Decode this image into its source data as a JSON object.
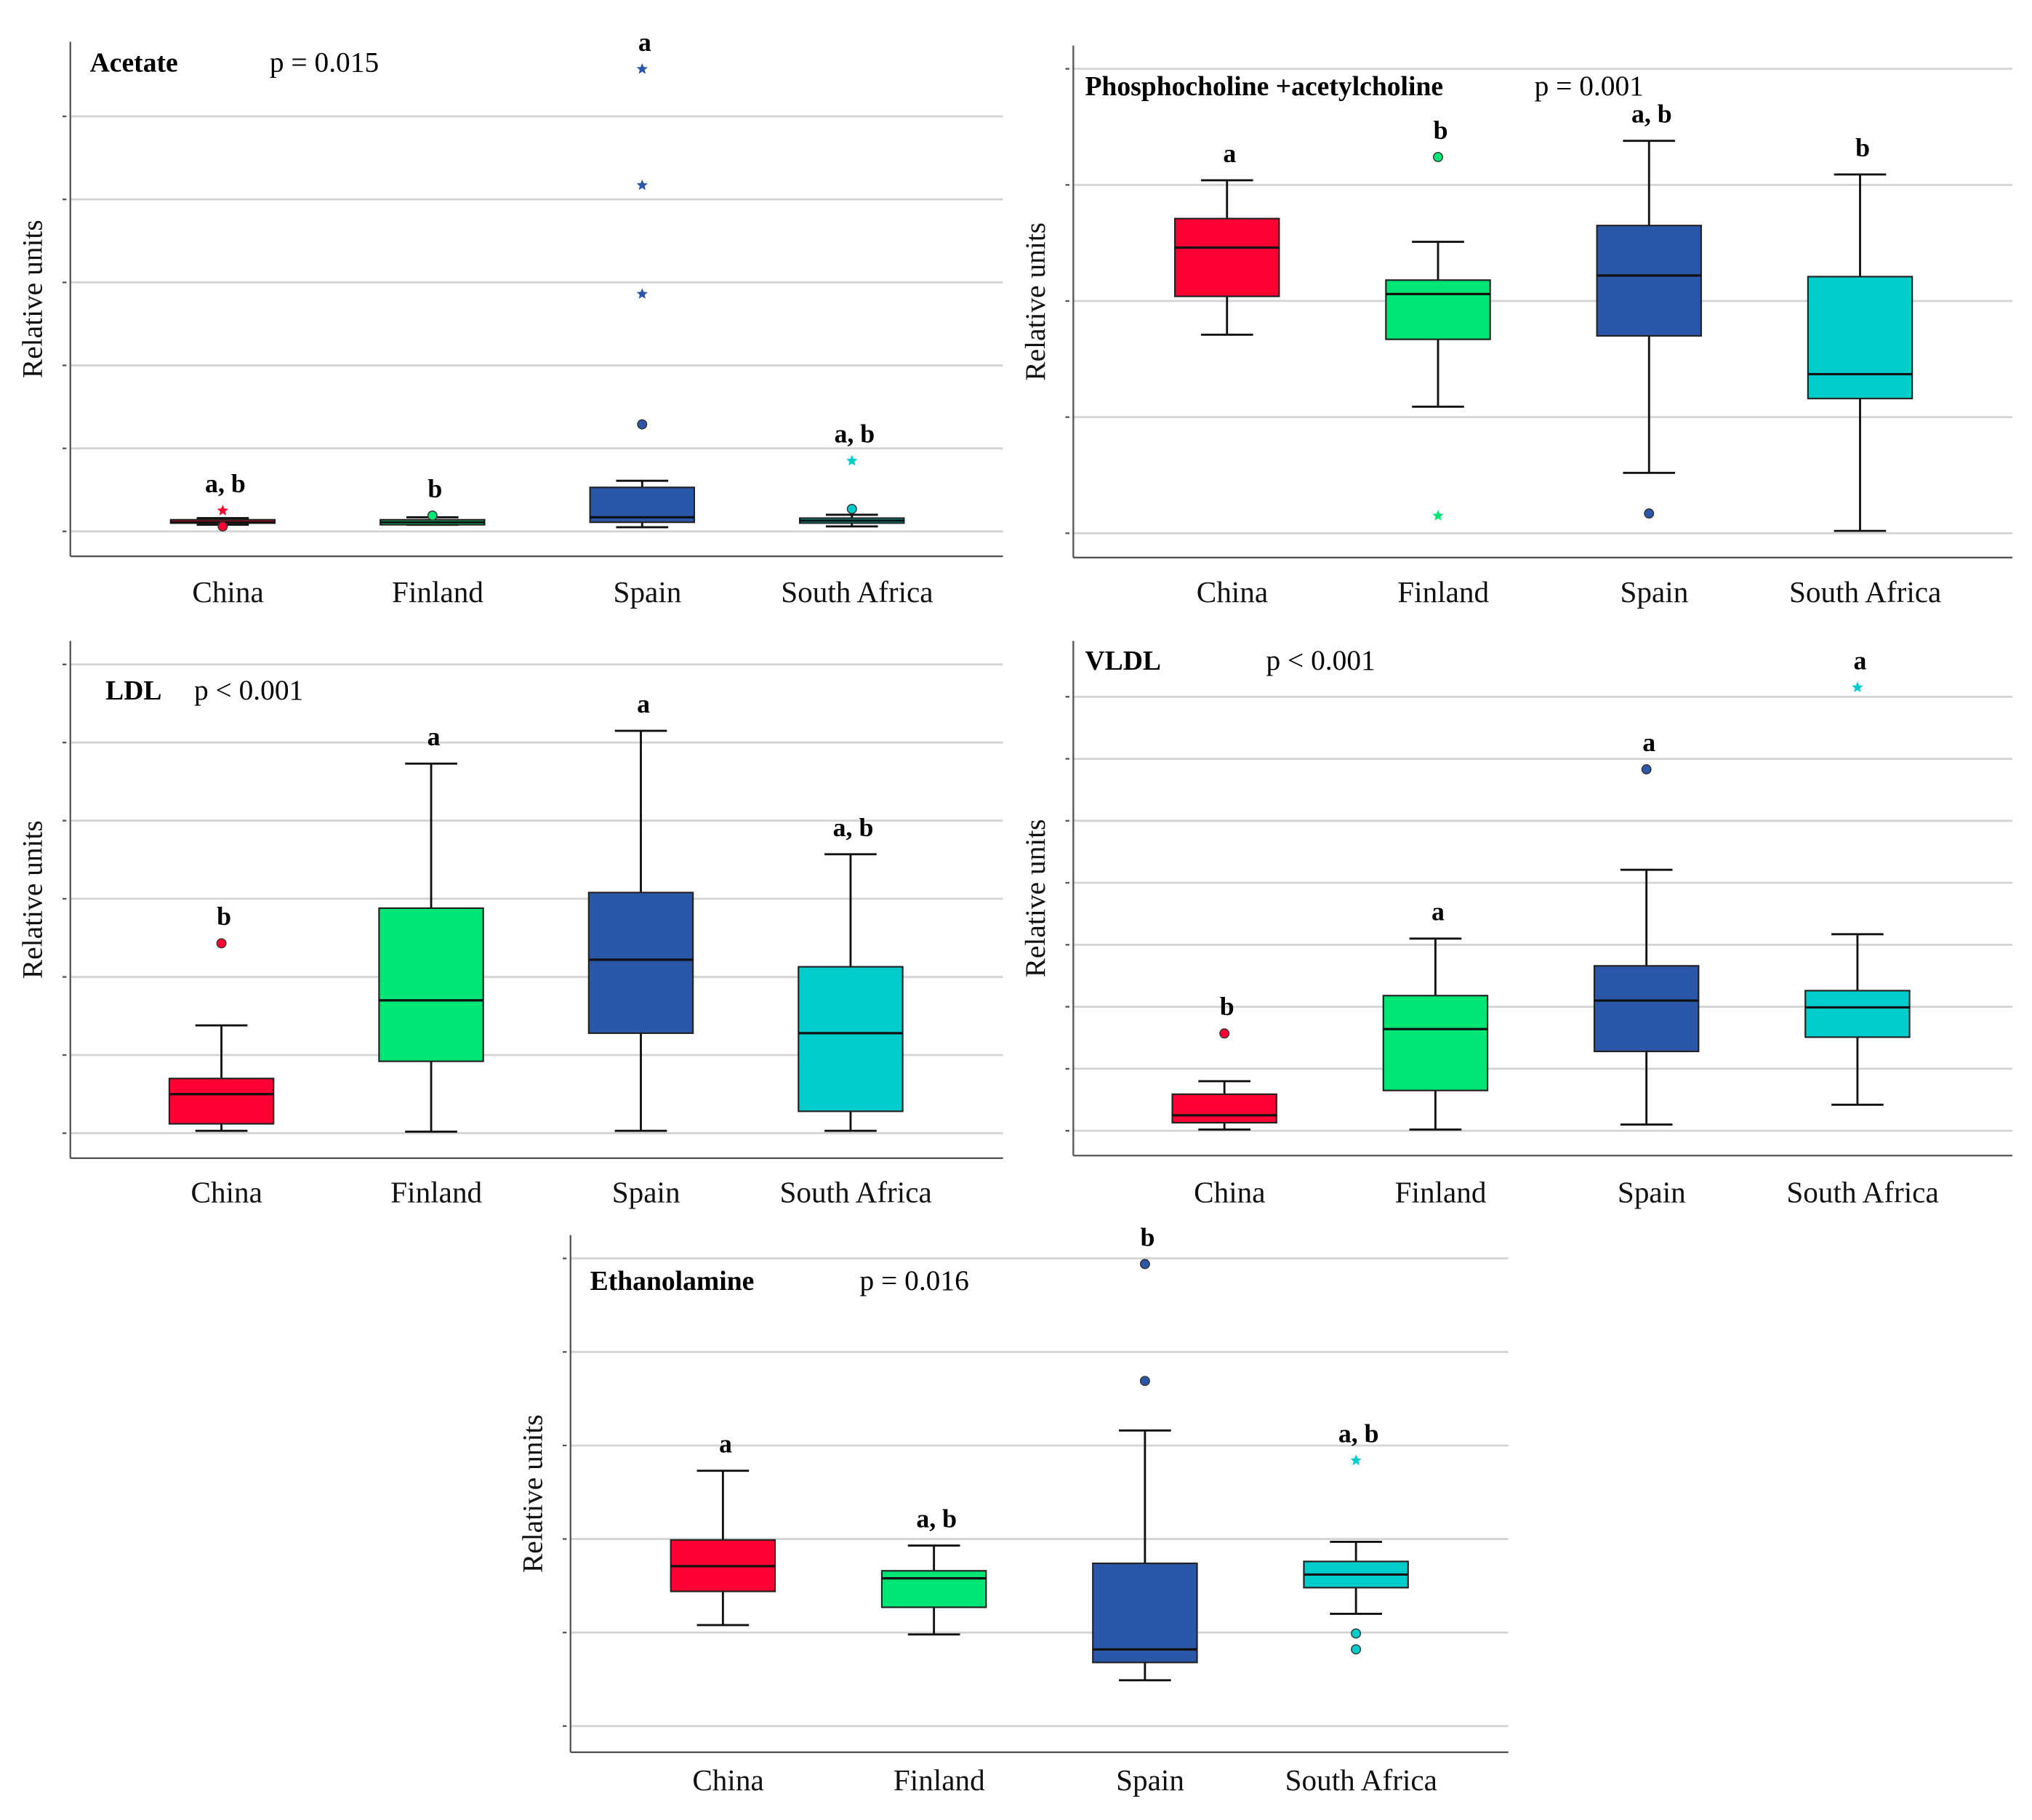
{
  "colors": {
    "China": "#ff0033",
    "Finland": "#00e676",
    "Spain": "#2b57a8",
    "South Africa": "#00cccc"
  },
  "chart_data": [
    {
      "type": "box",
      "title": "Acetate",
      "pvalue": "p = 0.015",
      "ylabel": "Relative units",
      "xlabel": "",
      "categories": [
        "China",
        "Finland",
        "Spain",
        "South Africa"
      ],
      "ylim": [
        -0.3,
        5.9
      ],
      "grid": true,
      "boxes": [
        {
          "min": 0.08,
          "q1": 0.1,
          "median": 0.11,
          "q3": 0.14,
          "max": 0.16,
          "outliers": [
            0.06
          ],
          "extremes": [
            0.25
          ],
          "letter": "a, b"
        },
        {
          "min": 0.08,
          "q1": 0.08,
          "median": 0.11,
          "q3": 0.14,
          "max": 0.17,
          "outliers": [
            0.19
          ],
          "extremes": [],
          "letter": "b"
        },
        {
          "min": 0.05,
          "q1": 0.11,
          "median": 0.17,
          "q3": 0.53,
          "max": 0.61,
          "outliers": [
            1.29
          ],
          "extremes": [
            2.86,
            4.17,
            5.57
          ],
          "letter": "a"
        },
        {
          "min": 0.06,
          "q1": 0.1,
          "median": 0.13,
          "q3": 0.16,
          "max": 0.2,
          "outliers": [
            0.27
          ],
          "extremes": [
            0.85
          ],
          "letter": "a, b"
        }
      ]
    },
    {
      "type": "box",
      "title": "Phosphocholine +acetylcholine",
      "pvalue": "p = 0.001",
      "ylabel": "Relative units",
      "xlabel": "",
      "categories": [
        "China",
        "Finland",
        "Spain",
        "South Africa"
      ],
      "ylim": [
        -0.21,
        4.2
      ],
      "grid": true,
      "boxes": [
        {
          "min": 1.71,
          "q1": 2.04,
          "median": 2.46,
          "q3": 2.71,
          "max": 3.04,
          "outliers": [],
          "extremes": [],
          "letter": "a"
        },
        {
          "min": 1.09,
          "q1": 1.67,
          "median": 2.06,
          "q3": 2.18,
          "max": 2.51,
          "outliers": [
            3.24
          ],
          "extremes": [
            0.15
          ],
          "letter": "b"
        },
        {
          "min": 0.52,
          "q1": 1.7,
          "median": 2.22,
          "q3": 2.65,
          "max": 3.38,
          "outliers": [
            0.17
          ],
          "extremes": [],
          "letter": "a, b"
        },
        {
          "min": 0.02,
          "q1": 1.16,
          "median": 1.37,
          "q3": 2.21,
          "max": 3.09,
          "outliers": [],
          "extremes": [],
          "letter": "b"
        }
      ]
    },
    {
      "type": "box",
      "title": "LDL",
      "pvalue": "p < 0.001",
      "ylabel": "Relative units",
      "xlabel": "",
      "categories": [
        "China",
        "Finland",
        "Spain",
        "South Africa"
      ],
      "ylim": [
        -0.32,
        6.3
      ],
      "grid": true,
      "boxes": [
        {
          "min": 0.03,
          "q1": 0.12,
          "median": 0.5,
          "q3": 0.7,
          "max": 1.38,
          "outliers": [
            2.43
          ],
          "extremes": [],
          "letter": "b"
        },
        {
          "min": 0.02,
          "q1": 0.92,
          "median": 1.7,
          "q3": 2.88,
          "max": 4.73,
          "outliers": [],
          "extremes": [],
          "letter": "a"
        },
        {
          "min": 0.03,
          "q1": 1.28,
          "median": 2.22,
          "q3": 3.08,
          "max": 5.15,
          "outliers": [],
          "extremes": [],
          "letter": "a"
        },
        {
          "min": 0.03,
          "q1": 0.28,
          "median": 1.28,
          "q3": 2.13,
          "max": 3.57,
          "outliers": [],
          "extremes": [],
          "letter": "a, b"
        }
      ]
    },
    {
      "type": "box",
      "title": "VLDL",
      "pvalue": "p < 0.001",
      "ylabel": "Relative units",
      "xlabel": "",
      "categories": [
        "China",
        "Finland",
        "Spain",
        "South Africa"
      ],
      "ylim": [
        -0.4,
        7.9
      ],
      "grid": true,
      "boxes": [
        {
          "min": 0.02,
          "q1": 0.13,
          "median": 0.25,
          "q3": 0.59,
          "max": 0.8,
          "outliers": [
            1.57
          ],
          "extremes": [],
          "letter": "b"
        },
        {
          "min": 0.02,
          "q1": 0.65,
          "median": 1.64,
          "q3": 2.18,
          "max": 3.1,
          "outliers": [],
          "extremes": [],
          "letter": "a"
        },
        {
          "min": 0.1,
          "q1": 1.28,
          "median": 2.1,
          "q3": 2.66,
          "max": 4.21,
          "outliers": [
            5.83
          ],
          "extremes": [],
          "letter": "a"
        },
        {
          "min": 0.42,
          "q1": 1.51,
          "median": 1.99,
          "q3": 2.26,
          "max": 3.17,
          "outliers": [],
          "extremes": [
            7.15
          ],
          "letter": "a"
        }
      ]
    },
    {
      "type": "box",
      "title": "Ethanolamine",
      "pvalue": "p = 0.016",
      "ylabel": "Relative units",
      "xlabel": "",
      "categories": [
        "China",
        "Finland",
        "Spain",
        "South Africa"
      ],
      "ylim": [
        -0.28,
        5.25
      ],
      "grid": true,
      "boxes": [
        {
          "min": 1.08,
          "q1": 1.44,
          "median": 1.71,
          "q3": 1.99,
          "max": 2.73,
          "outliers": [],
          "extremes": [],
          "letter": "a"
        },
        {
          "min": 0.98,
          "q1": 1.27,
          "median": 1.58,
          "q3": 1.66,
          "max": 1.93,
          "outliers": [],
          "extremes": [],
          "letter": "a, b"
        },
        {
          "min": 0.49,
          "q1": 0.68,
          "median": 0.82,
          "q3": 1.74,
          "max": 3.16,
          "outliers": [
            3.69,
            4.94
          ],
          "extremes": [],
          "letter": "b"
        },
        {
          "min": 1.2,
          "q1": 1.48,
          "median": 1.62,
          "q3": 1.76,
          "max": 1.97,
          "outliers": [
            0.99,
            0.82
          ],
          "extremes": [
            2.84
          ],
          "letter": "a, b"
        }
      ]
    }
  ]
}
